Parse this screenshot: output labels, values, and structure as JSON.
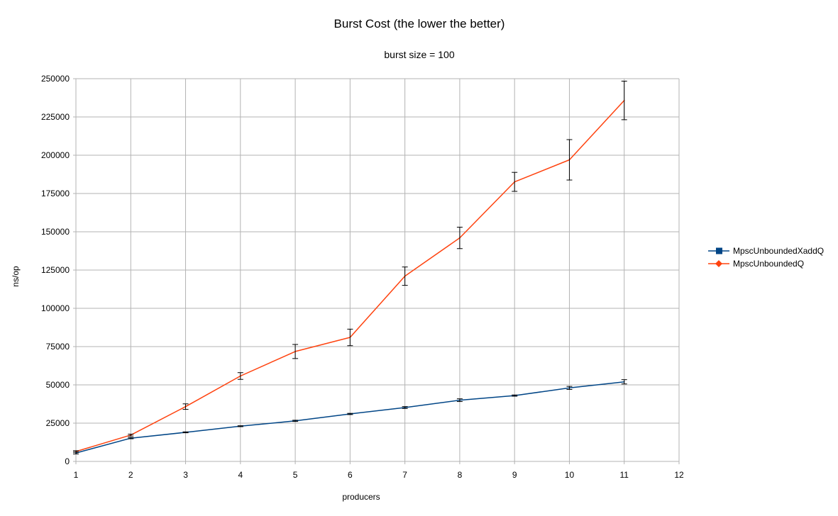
{
  "chart_data": {
    "type": "line",
    "title": "Burst Cost (the lower the better)",
    "subtitle": "burst size = 100",
    "xlabel": "producers",
    "ylabel": "ns/op",
    "xlim": [
      1,
      12
    ],
    "ylim": [
      0,
      250000
    ],
    "x_ticks": [
      1,
      2,
      3,
      4,
      5,
      6,
      7,
      8,
      9,
      10,
      11,
      12
    ],
    "y_ticks": [
      0,
      25000,
      50000,
      75000,
      100000,
      125000,
      150000,
      175000,
      200000,
      225000,
      250000
    ],
    "grid": true,
    "legend_position": "right",
    "series": [
      {
        "name": "MpscUnboundedXaddQ",
        "color": "#004586",
        "marker": "square",
        "x": [
          1,
          2,
          3,
          4,
          5,
          6,
          7,
          8,
          9,
          10,
          11
        ],
        "values": [
          5500,
          15200,
          19000,
          23000,
          26500,
          31000,
          35200,
          40000,
          43000,
          48000,
          52000
        ],
        "error": [
          600,
          400,
          300,
          300,
          400,
          400,
          600,
          900,
          400,
          1000,
          1400
        ]
      },
      {
        "name": "MpscUnboundedQ",
        "color": "#ff420e",
        "marker": "diamond",
        "x": [
          1,
          2,
          3,
          4,
          5,
          6,
          7,
          8,
          9,
          10,
          11
        ],
        "values": [
          6500,
          17200,
          35800,
          55800,
          71800,
          81000,
          121000,
          146000,
          182600,
          197000,
          235800
        ],
        "error": [
          500,
          600,
          1800,
          2200,
          4600,
          5400,
          6000,
          7000,
          6200,
          13200,
          12600
        ]
      }
    ]
  }
}
